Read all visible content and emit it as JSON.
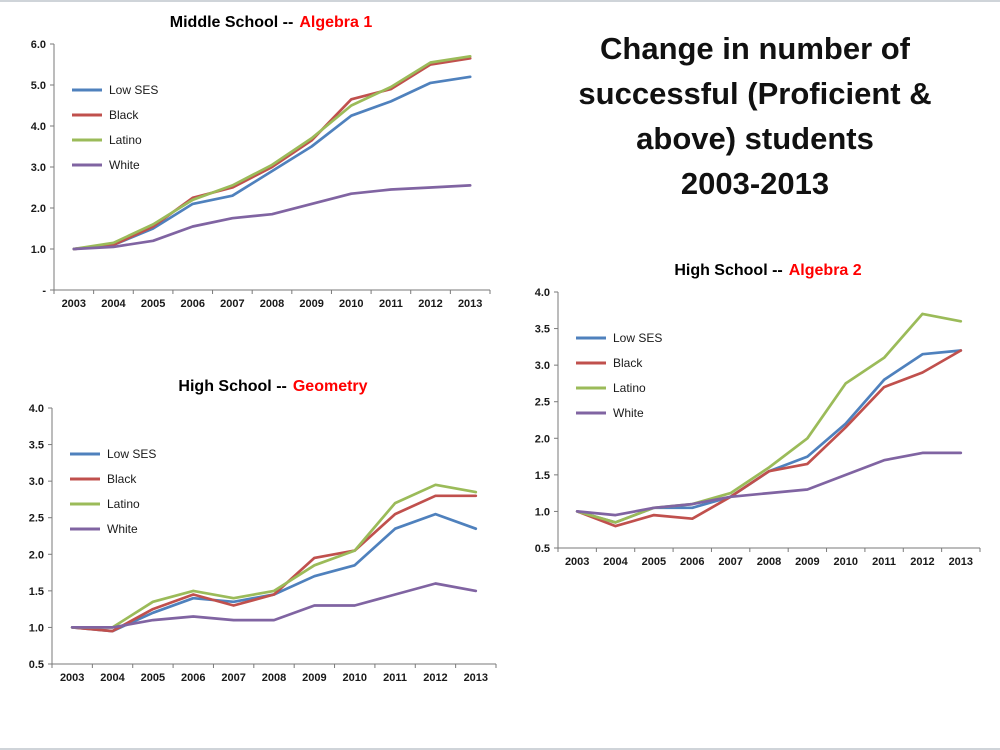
{
  "main_title": {
    "lines": [
      "Change in number of",
      "successful (Proficient &",
      "above) students",
      "2003-2013"
    ]
  },
  "accent_color": "#FF0000",
  "series_colors": {
    "low_ses": "#4F81BD",
    "black": "#C0504D",
    "latino": "#9BBB59",
    "white": "#8064A2"
  },
  "chart_data": [
    {
      "type": "line",
      "title_prefix": "Middle School --",
      "title_accent": "Algebra 1",
      "x": [
        2003,
        2004,
        2005,
        2006,
        2007,
        2008,
        2009,
        2010,
        2011,
        2012,
        2013
      ],
      "ylim": [
        0,
        6
      ],
      "yticks": [
        {
          "v": 0,
          "label": "-"
        },
        {
          "v": 1,
          "label": "1.0"
        },
        {
          "v": 2,
          "label": "2.0"
        },
        {
          "v": 3,
          "label": "3.0"
        },
        {
          "v": 4,
          "label": "4.0"
        },
        {
          "v": 5,
          "label": "5.0"
        },
        {
          "v": 6,
          "label": "6.0"
        }
      ],
      "grid": false,
      "legend_position": "upper-left-inside",
      "series": [
        {
          "name": "Low SES",
          "color": "#4F81BD",
          "values": [
            1.0,
            1.1,
            1.5,
            2.1,
            2.3,
            2.9,
            3.5,
            4.25,
            4.6,
            5.05,
            5.2
          ]
        },
        {
          "name": "Black",
          "color": "#C0504D",
          "values": [
            1.0,
            1.1,
            1.55,
            2.25,
            2.5,
            3.0,
            3.65,
            4.65,
            4.9,
            5.5,
            5.65
          ]
        },
        {
          "name": "Latino",
          "color": "#9BBB59",
          "values": [
            1.0,
            1.15,
            1.6,
            2.2,
            2.55,
            3.05,
            3.7,
            4.5,
            4.95,
            5.55,
            5.7
          ]
        },
        {
          "name": "White",
          "color": "#8064A2",
          "values": [
            1.0,
            1.05,
            1.2,
            1.55,
            1.75,
            1.85,
            2.1,
            2.35,
            2.45,
            2.5,
            2.55
          ]
        }
      ]
    },
    {
      "type": "line",
      "title_prefix": "High School --",
      "title_accent": "Geometry",
      "x": [
        2003,
        2004,
        2005,
        2006,
        2007,
        2008,
        2009,
        2010,
        2011,
        2012,
        2013
      ],
      "ylim": [
        0.5,
        4.0
      ],
      "yticks": [
        {
          "v": 0.5,
          "label": "0.5"
        },
        {
          "v": 1.0,
          "label": "1.0"
        },
        {
          "v": 1.5,
          "label": "1.5"
        },
        {
          "v": 2.0,
          "label": "2.0"
        },
        {
          "v": 2.5,
          "label": "2.5"
        },
        {
          "v": 3.0,
          "label": "3.0"
        },
        {
          "v": 3.5,
          "label": "3.5"
        },
        {
          "v": 4.0,
          "label": "4.0"
        }
      ],
      "grid": false,
      "legend_position": "upper-left-inside",
      "series": [
        {
          "name": "Low SES",
          "color": "#4F81BD",
          "values": [
            1.0,
            0.95,
            1.2,
            1.4,
            1.35,
            1.45,
            1.7,
            1.85,
            2.35,
            2.55,
            2.35
          ]
        },
        {
          "name": "Black",
          "color": "#C0504D",
          "values": [
            1.0,
            0.95,
            1.25,
            1.45,
            1.3,
            1.45,
            1.95,
            2.05,
            2.55,
            2.8,
            2.8
          ]
        },
        {
          "name": "Latino",
          "color": "#9BBB59",
          "values": [
            1.0,
            1.0,
            1.35,
            1.5,
            1.4,
            1.5,
            1.85,
            2.05,
            2.7,
            2.95,
            2.85
          ]
        },
        {
          "name": "White",
          "color": "#8064A2",
          "values": [
            1.0,
            1.0,
            1.1,
            1.15,
            1.1,
            1.1,
            1.3,
            1.3,
            1.45,
            1.6,
            1.5
          ]
        }
      ]
    },
    {
      "type": "line",
      "title_prefix": "High School --",
      "title_accent": "Algebra 2",
      "x": [
        2003,
        2004,
        2005,
        2006,
        2007,
        2008,
        2009,
        2010,
        2011,
        2012,
        2013
      ],
      "ylim": [
        0.5,
        4.0
      ],
      "yticks": [
        {
          "v": 0.5,
          "label": "0.5"
        },
        {
          "v": 1.0,
          "label": "1.0"
        },
        {
          "v": 1.5,
          "label": "1.5"
        },
        {
          "v": 2.0,
          "label": "2.0"
        },
        {
          "v": 2.5,
          "label": "2.5"
        },
        {
          "v": 3.0,
          "label": "3.0"
        },
        {
          "v": 3.5,
          "label": "3.5"
        },
        {
          "v": 4.0,
          "label": "4.0"
        }
      ],
      "grid": false,
      "legend_position": "upper-left-inside",
      "series": [
        {
          "name": "Low SES",
          "color": "#4F81BD",
          "values": [
            1.0,
            0.85,
            1.05,
            1.05,
            1.2,
            1.55,
            1.75,
            2.2,
            2.8,
            3.15,
            3.2
          ]
        },
        {
          "name": "Black",
          "color": "#C0504D",
          "values": [
            1.0,
            0.8,
            0.95,
            0.9,
            1.2,
            1.55,
            1.65,
            2.15,
            2.7,
            2.9,
            3.2
          ]
        },
        {
          "name": "Latino",
          "color": "#9BBB59",
          "values": [
            1.0,
            0.85,
            1.05,
            1.1,
            1.25,
            1.6,
            2.0,
            2.75,
            3.1,
            3.7,
            3.6
          ]
        },
        {
          "name": "White",
          "color": "#8064A2",
          "values": [
            1.0,
            0.95,
            1.05,
            1.1,
            1.2,
            1.25,
            1.3,
            1.5,
            1.7,
            1.8,
            1.8
          ]
        }
      ]
    }
  ]
}
